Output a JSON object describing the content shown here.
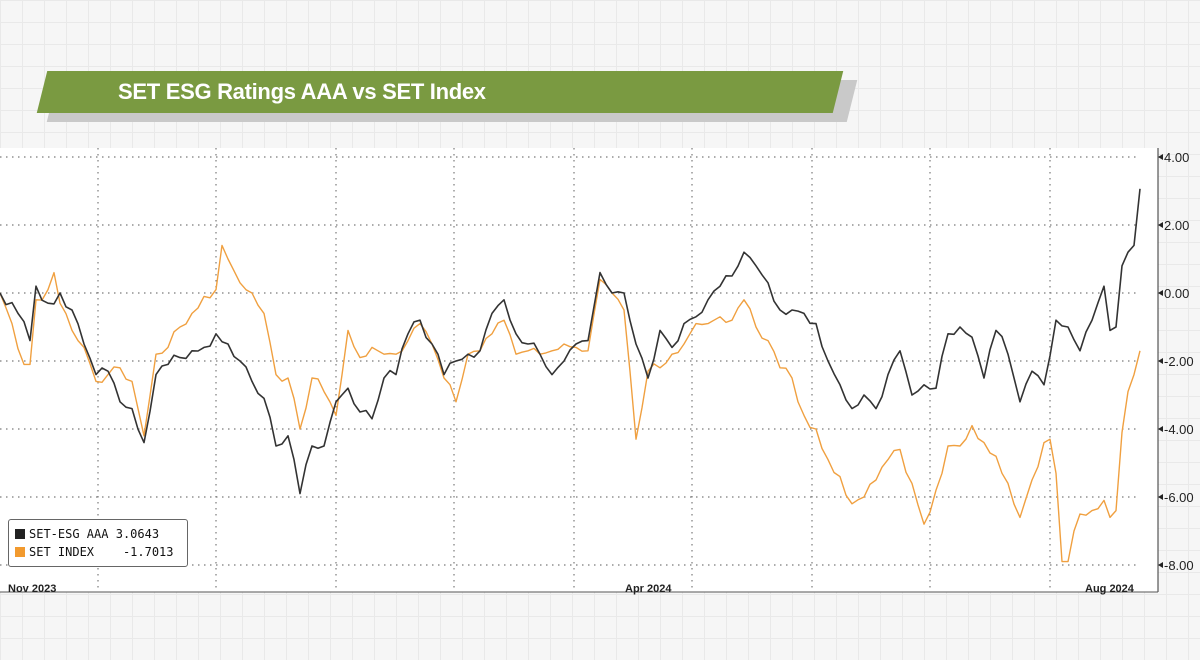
{
  "header": {
    "title": "SET ESG Ratings AAA vs SET Index"
  },
  "colors": {
    "banner": "#7a9a41",
    "esg": "#333333",
    "set": "#f0a040"
  },
  "legend": {
    "items": [
      {
        "name": "SET-ESG AAA",
        "value": "3.0643",
        "color": "#222222"
      },
      {
        "name": "SET INDEX",
        "value": "-1.7013",
        "color": "#f29a2e"
      }
    ]
  },
  "chart_data": {
    "type": "line",
    "title": "SET ESG Ratings AAA vs SET Index",
    "xlabel": "",
    "ylabel": "",
    "ylim": [
      -8.8,
      4.2
    ],
    "yticks": [
      4,
      2,
      0,
      -2,
      -4,
      -6,
      -8
    ],
    "ytick_labels": [
      "4.00",
      "2.00",
      "0.00",
      "-2.00",
      "-4.00",
      "-6.00",
      "-8.00"
    ],
    "x_labels": [
      {
        "label": "Nov 2023",
        "index": 0
      },
      {
        "label": "Apr 2024",
        "index": 105
      },
      {
        "label": "Aug 2024",
        "index": 190
      }
    ],
    "x_count": 191,
    "series": [
      {
        "name": "SET-ESG AAA",
        "last_value": 3.0643,
        "anchors": [
          [
            0,
            0
          ],
          [
            3,
            -0.6
          ],
          [
            5,
            -1.4
          ],
          [
            6,
            0.2
          ],
          [
            8,
            -0.3
          ],
          [
            10,
            0
          ],
          [
            12,
            -0.5
          ],
          [
            14,
            -1.5
          ],
          [
            16,
            -2.4
          ],
          [
            18,
            -2.3
          ],
          [
            20,
            -3.2
          ],
          [
            22,
            -3.4
          ],
          [
            24,
            -4.4
          ],
          [
            26,
            -2.4
          ],
          [
            28,
            -2.1
          ],
          [
            30,
            -1.9
          ],
          [
            32,
            -1.7
          ],
          [
            34,
            -1.6
          ],
          [
            36,
            -1.2
          ],
          [
            38,
            -1.5
          ],
          [
            40,
            -2.0
          ],
          [
            42,
            -2.6
          ],
          [
            44,
            -3.1
          ],
          [
            46,
            -4.5
          ],
          [
            48,
            -4.2
          ],
          [
            50,
            -5.9
          ],
          [
            52,
            -4.5
          ],
          [
            54,
            -4.5
          ],
          [
            56,
            -3.2
          ],
          [
            58,
            -2.8
          ],
          [
            60,
            -3.5
          ],
          [
            62,
            -3.7
          ],
          [
            64,
            -2.5
          ],
          [
            66,
            -2.4
          ],
          [
            68,
            -1.2
          ],
          [
            70,
            -0.8
          ],
          [
            72,
            -1.5
          ],
          [
            74,
            -2.4
          ],
          [
            76,
            -2.0
          ],
          [
            78,
            -1.8
          ],
          [
            80,
            -1.7
          ],
          [
            82,
            -0.6
          ],
          [
            84,
            -0.2
          ],
          [
            86,
            -1.2
          ],
          [
            88,
            -1.5
          ],
          [
            90,
            -1.8
          ],
          [
            92,
            -2.4
          ],
          [
            94,
            -2.0
          ],
          [
            96,
            -1.5
          ],
          [
            98,
            -1.4
          ],
          [
            100,
            0.6
          ],
          [
            102,
            0
          ],
          [
            104,
            0
          ],
          [
            106,
            -1.5
          ],
          [
            108,
            -2.5
          ],
          [
            110,
            -1.1
          ],
          [
            112,
            -1.6
          ],
          [
            114,
            -0.9
          ],
          [
            116,
            -0.7
          ],
          [
            118,
            -0.2
          ],
          [
            120,
            0.2
          ],
          [
            122,
            0.5
          ],
          [
            124,
            1.2
          ],
          [
            126,
            0.8
          ],
          [
            128,
            0.3
          ],
          [
            130,
            -0.5
          ],
          [
            132,
            -0.5
          ],
          [
            134,
            -0.6
          ],
          [
            136,
            -0.9
          ],
          [
            138,
            -2.0
          ],
          [
            140,
            -2.7
          ],
          [
            142,
            -3.4
          ],
          [
            144,
            -3.0
          ],
          [
            146,
            -3.4
          ],
          [
            148,
            -2.4
          ],
          [
            150,
            -1.7
          ],
          [
            152,
            -3.0
          ],
          [
            154,
            -2.7
          ],
          [
            156,
            -2.8
          ],
          [
            158,
            -1.2
          ],
          [
            160,
            -1.0
          ],
          [
            162,
            -1.3
          ],
          [
            164,
            -2.5
          ],
          [
            166,
            -1.1
          ],
          [
            168,
            -1.8
          ],
          [
            170,
            -3.2
          ],
          [
            172,
            -2.3
          ],
          [
            174,
            -2.7
          ],
          [
            176,
            -0.8
          ],
          [
            178,
            -1.0
          ],
          [
            180,
            -1.7
          ],
          [
            182,
            -0.8
          ],
          [
            184,
            0.2
          ],
          [
            185,
            -1.1
          ],
          [
            186,
            -1.0
          ],
          [
            187,
            0.8
          ],
          [
            188,
            1.2
          ],
          [
            189,
            1.4
          ],
          [
            190,
            3.0643
          ]
        ]
      },
      {
        "name": "SET INDEX",
        "last_value": -1.7013,
        "anchors": [
          [
            0,
            0
          ],
          [
            2,
            -0.9
          ],
          [
            4,
            -2.1
          ],
          [
            5,
            -2.1
          ],
          [
            6,
            -0.2
          ],
          [
            8,
            0.1
          ],
          [
            9,
            0.6
          ],
          [
            10,
            -0.3
          ],
          [
            12,
            -1.1
          ],
          [
            13,
            -1.4
          ],
          [
            14,
            -1.6
          ],
          [
            16,
            -2.6
          ],
          [
            18,
            -2.4
          ],
          [
            20,
            -2.2
          ],
          [
            22,
            -2.6
          ],
          [
            23,
            -3.4
          ],
          [
            24,
            -4.2
          ],
          [
            26,
            -1.8
          ],
          [
            28,
            -1.6
          ],
          [
            30,
            -1.0
          ],
          [
            32,
            -0.6
          ],
          [
            34,
            -0.1
          ],
          [
            36,
            0.1
          ],
          [
            37,
            1.4
          ],
          [
            38,
            1.0
          ],
          [
            40,
            0.3
          ],
          [
            42,
            0
          ],
          [
            44,
            -0.6
          ],
          [
            46,
            -2.4
          ],
          [
            48,
            -2.5
          ],
          [
            50,
            -4.0
          ],
          [
            52,
            -2.5
          ],
          [
            54,
            -2.9
          ],
          [
            56,
            -3.6
          ],
          [
            58,
            -1.1
          ],
          [
            60,
            -1.9
          ],
          [
            62,
            -1.6
          ],
          [
            64,
            -1.8
          ],
          [
            66,
            -1.8
          ],
          [
            68,
            -1.4
          ],
          [
            70,
            -0.9
          ],
          [
            72,
            -1.5
          ],
          [
            74,
            -2.5
          ],
          [
            76,
            -3.2
          ],
          [
            78,
            -1.8
          ],
          [
            80,
            -1.7
          ],
          [
            82,
            -1.2
          ],
          [
            84,
            -0.8
          ],
          [
            86,
            -1.8
          ],
          [
            88,
            -1.7
          ],
          [
            90,
            -1.8
          ],
          [
            92,
            -1.7
          ],
          [
            94,
            -1.5
          ],
          [
            96,
            -1.6
          ],
          [
            98,
            -1.7
          ],
          [
            100,
            0.4
          ],
          [
            102,
            0
          ],
          [
            104,
            -0.5
          ],
          [
            106,
            -4.3
          ],
          [
            108,
            -2.3
          ],
          [
            110,
            -2.2
          ],
          [
            112,
            -1.8
          ],
          [
            114,
            -1.5
          ],
          [
            116,
            -0.9
          ],
          [
            118,
            -0.9
          ],
          [
            120,
            -0.7
          ],
          [
            122,
            -0.8
          ],
          [
            124,
            -0.2
          ],
          [
            126,
            -1.0
          ],
          [
            128,
            -1.4
          ],
          [
            130,
            -2.2
          ],
          [
            132,
            -2.5
          ],
          [
            134,
            -3.6
          ],
          [
            136,
            -4.0
          ],
          [
            138,
            -4.9
          ],
          [
            140,
            -5.4
          ],
          [
            142,
            -6.2
          ],
          [
            144,
            -6.0
          ],
          [
            146,
            -5.5
          ],
          [
            148,
            -4.9
          ],
          [
            150,
            -4.6
          ],
          [
            152,
            -5.6
          ],
          [
            154,
            -6.8
          ],
          [
            156,
            -5.8
          ],
          [
            158,
            -4.5
          ],
          [
            160,
            -4.5
          ],
          [
            162,
            -3.9
          ],
          [
            164,
            -4.4
          ],
          [
            166,
            -4.8
          ],
          [
            168,
            -5.6
          ],
          [
            170,
            -6.6
          ],
          [
            172,
            -5.5
          ],
          [
            174,
            -4.4
          ],
          [
            175,
            -4.3
          ],
          [
            176,
            -5.3
          ],
          [
            177,
            -7.9
          ],
          [
            178,
            -7.9
          ],
          [
            179,
            -7.0
          ],
          [
            180,
            -6.5
          ],
          [
            182,
            -6.4
          ],
          [
            184,
            -6.1
          ],
          [
            185,
            -6.6
          ],
          [
            186,
            -6.4
          ],
          [
            187,
            -4.1
          ],
          [
            188,
            -2.9
          ],
          [
            189,
            -2.4
          ],
          [
            190,
            -1.7013
          ]
        ]
      }
    ]
  }
}
